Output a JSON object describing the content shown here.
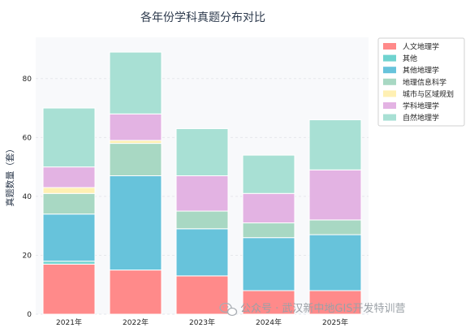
{
  "chart_data": {
    "type": "bar",
    "stacked": true,
    "title": "各年份学科真题分布对比",
    "xlabel": "",
    "ylabel": "真题数量（套）",
    "categories": [
      "2021年",
      "2022年",
      "2023年",
      "2024年",
      "2025年"
    ],
    "ylim": [
      0,
      94
    ],
    "yticks": [
      0,
      20,
      40,
      60,
      80
    ],
    "grid": true,
    "legend_position": "outside-right",
    "series": [
      {
        "name": "人文地理学",
        "color": "#ff8a8a",
        "values": [
          17,
          15,
          13,
          8,
          8
        ]
      },
      {
        "name": "其他",
        "color": "#6fd3cf",
        "values": [
          1,
          0,
          0,
          0,
          0
        ]
      },
      {
        "name": "其他地理学",
        "color": "#67c3db",
        "values": [
          16,
          32,
          16,
          18,
          19
        ]
      },
      {
        "name": "地理信息科学",
        "color": "#a8d8c3",
        "values": [
          7,
          11,
          6,
          5,
          5
        ]
      },
      {
        "name": "城市与区域规划",
        "color": "#fff0b3",
        "values": [
          2,
          1,
          0,
          0,
          0
        ]
      },
      {
        "name": "学科地理学",
        "color": "#e3b3e3",
        "values": [
          7,
          9,
          12,
          10,
          17
        ]
      },
      {
        "name": "自然地理学",
        "color": "#a8e0d4",
        "values": [
          20,
          21,
          16,
          13,
          17
        ]
      }
    ]
  },
  "watermark": {
    "icon": "wechat-icon",
    "text": "公众号 · 武汉新中地GIS开发特训营"
  }
}
